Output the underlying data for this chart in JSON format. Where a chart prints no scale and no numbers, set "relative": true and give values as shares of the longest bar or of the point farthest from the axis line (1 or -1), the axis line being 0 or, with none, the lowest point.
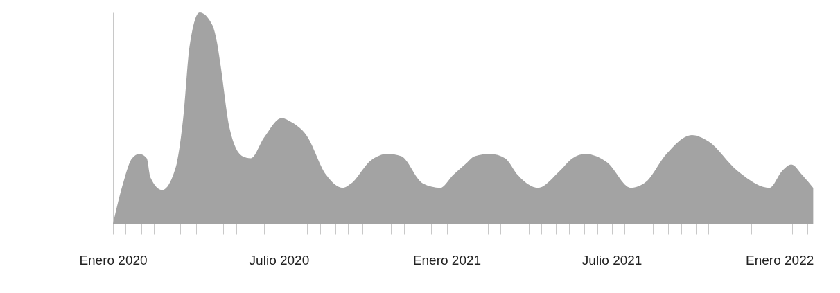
{
  "chart_data": {
    "type": "area",
    "relative": true,
    "x": [
      "2020-01-01",
      "2020-01-12",
      "2020-01-22",
      "2020-01-30",
      "2020-02-07",
      "2020-02-11",
      "2020-02-24",
      "2020-03-10",
      "2020-03-18",
      "2020-03-25",
      "2020-04-05",
      "2020-04-19",
      "2020-04-24",
      "2020-04-28",
      "2020-05-08",
      "2020-05-22",
      "2020-05-31",
      "2020-06-15",
      "2020-07-04",
      "2020-07-15",
      "2020-07-31",
      "2020-08-22",
      "2020-09-09",
      "2020-09-18",
      "2020-10-10",
      "2020-10-28",
      "2020-11-12",
      "2020-12-06",
      "2020-12-25",
      "2021-01-08",
      "2021-01-21",
      "2021-02-01",
      "2021-02-18",
      "2021-03-06",
      "2021-03-20",
      "2021-04-11",
      "2021-05-05",
      "2021-05-19",
      "2021-06-02",
      "2021-06-26",
      "2021-07-22",
      "2021-08-08",
      "2021-08-30",
      "2021-09-27",
      "2021-10-15",
      "2021-11-16",
      "2021-12-21",
      "2022-01-04",
      "2022-01-14",
      "2022-01-26",
      "2022-02-07"
    ],
    "series": [
      {
        "color": "#a3a3a3",
        "values": [
          0,
          0.19,
          0.31,
          0.33,
          0.31,
          0.22,
          0.16,
          0.27,
          0.5,
          0.84,
          1,
          0.94,
          0.86,
          0.75,
          0.45,
          0.32,
          0.31,
          0.41,
          0.5,
          0.48,
          0.42,
          0.23,
          0.17,
          0.19,
          0.3,
          0.33,
          0.32,
          0.19,
          0.17,
          0.23,
          0.28,
          0.32,
          0.33,
          0.31,
          0.23,
          0.17,
          0.25,
          0.31,
          0.33,
          0.29,
          0.17,
          0.2,
          0.33,
          0.42,
          0.39,
          0.25,
          0.17,
          0.25,
          0.28,
          0.23,
          0.17
        ]
      }
    ],
    "xlim": [
      "2020-01-01",
      "2022-02-09"
    ],
    "xticks": [
      {
        "value": "2020-01-01",
        "label": "Enero 2020"
      },
      {
        "value": "2020-01-15",
        "label": null
      },
      {
        "value": "2020-02-01",
        "label": null
      },
      {
        "value": "2020-02-15",
        "label": null
      },
      {
        "value": "2020-03-01",
        "label": null
      },
      {
        "value": "2020-03-15",
        "label": null
      },
      {
        "value": "2020-04-01",
        "label": null
      },
      {
        "value": "2020-04-15",
        "label": null
      },
      {
        "value": "2020-05-01",
        "label": null
      },
      {
        "value": "2020-05-15",
        "label": null
      },
      {
        "value": "2020-06-01",
        "label": null
      },
      {
        "value": "2020-06-15",
        "label": null
      },
      {
        "value": "2020-07-01",
        "label": "Julio 2020"
      },
      {
        "value": "2020-07-15",
        "label": null
      },
      {
        "value": "2020-08-01",
        "label": null
      },
      {
        "value": "2020-08-15",
        "label": null
      },
      {
        "value": "2020-09-01",
        "label": null
      },
      {
        "value": "2020-09-15",
        "label": null
      },
      {
        "value": "2020-10-01",
        "label": null
      },
      {
        "value": "2020-10-15",
        "label": null
      },
      {
        "value": "2020-11-01",
        "label": null
      },
      {
        "value": "2020-11-15",
        "label": null
      },
      {
        "value": "2020-12-01",
        "label": null
      },
      {
        "value": "2020-12-15",
        "label": null
      },
      {
        "value": "2021-01-01",
        "label": "Enero 2021"
      },
      {
        "value": "2021-01-15",
        "label": null
      },
      {
        "value": "2021-02-01",
        "label": null
      },
      {
        "value": "2021-02-15",
        "label": null
      },
      {
        "value": "2021-03-01",
        "label": null
      },
      {
        "value": "2021-03-15",
        "label": null
      },
      {
        "value": "2021-04-01",
        "label": null
      },
      {
        "value": "2021-04-15",
        "label": null
      },
      {
        "value": "2021-05-01",
        "label": null
      },
      {
        "value": "2021-05-15",
        "label": null
      },
      {
        "value": "2021-06-01",
        "label": null
      },
      {
        "value": "2021-06-15",
        "label": null
      },
      {
        "value": "2021-07-01",
        "label": "Julio 2021"
      },
      {
        "value": "2021-07-15",
        "label": null
      },
      {
        "value": "2021-08-01",
        "label": null
      },
      {
        "value": "2021-08-15",
        "label": null
      },
      {
        "value": "2021-09-01",
        "label": null
      },
      {
        "value": "2021-09-15",
        "label": null
      },
      {
        "value": "2021-10-01",
        "label": null
      },
      {
        "value": "2021-10-15",
        "label": null
      },
      {
        "value": "2021-11-01",
        "label": null
      },
      {
        "value": "2021-11-15",
        "label": null
      },
      {
        "value": "2021-12-01",
        "label": null
      },
      {
        "value": "2021-12-15",
        "label": null
      },
      {
        "value": "2022-01-01",
        "label": "Enero 2022"
      },
      {
        "value": "2022-01-15",
        "label": null
      },
      {
        "value": "2022-02-01",
        "label": null
      }
    ]
  }
}
